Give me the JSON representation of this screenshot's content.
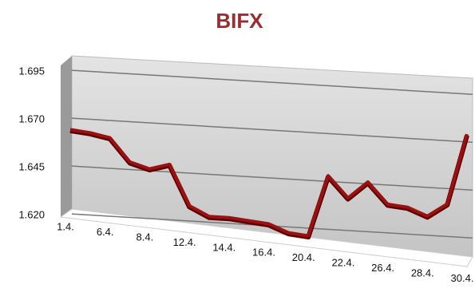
{
  "chart_data": {
    "type": "line",
    "title": "BIFX",
    "categories": [
      "1.4.",
      null,
      "6.4.",
      null,
      "8.4.",
      null,
      "12.4.",
      null,
      "14.4.",
      null,
      "16.4.",
      null,
      "20.4.",
      null,
      "22.4.",
      null,
      "26.4.",
      null,
      "28.4.",
      null,
      "30.4."
    ],
    "series": [
      {
        "name": "BIFX",
        "color": "#9b1010",
        "values": [
          1.664,
          1.663,
          1.661,
          1.649,
          1.646,
          1.649,
          1.628,
          1.623,
          1.623,
          1.622,
          1.621,
          1.617,
          1.616,
          1.648,
          1.637,
          1.646,
          1.635,
          1.634,
          1.63,
          1.637,
          1.674
        ]
      }
    ],
    "ylim": [
      1.61,
      1.7
    ],
    "yticks": [
      {
        "value": 1.62,
        "label": "1.620"
      },
      {
        "value": 1.645,
        "label": "1.645"
      },
      {
        "value": 1.67,
        "label": "1.670"
      },
      {
        "value": 1.695,
        "label": "1.695"
      }
    ],
    "grid": true
  }
}
